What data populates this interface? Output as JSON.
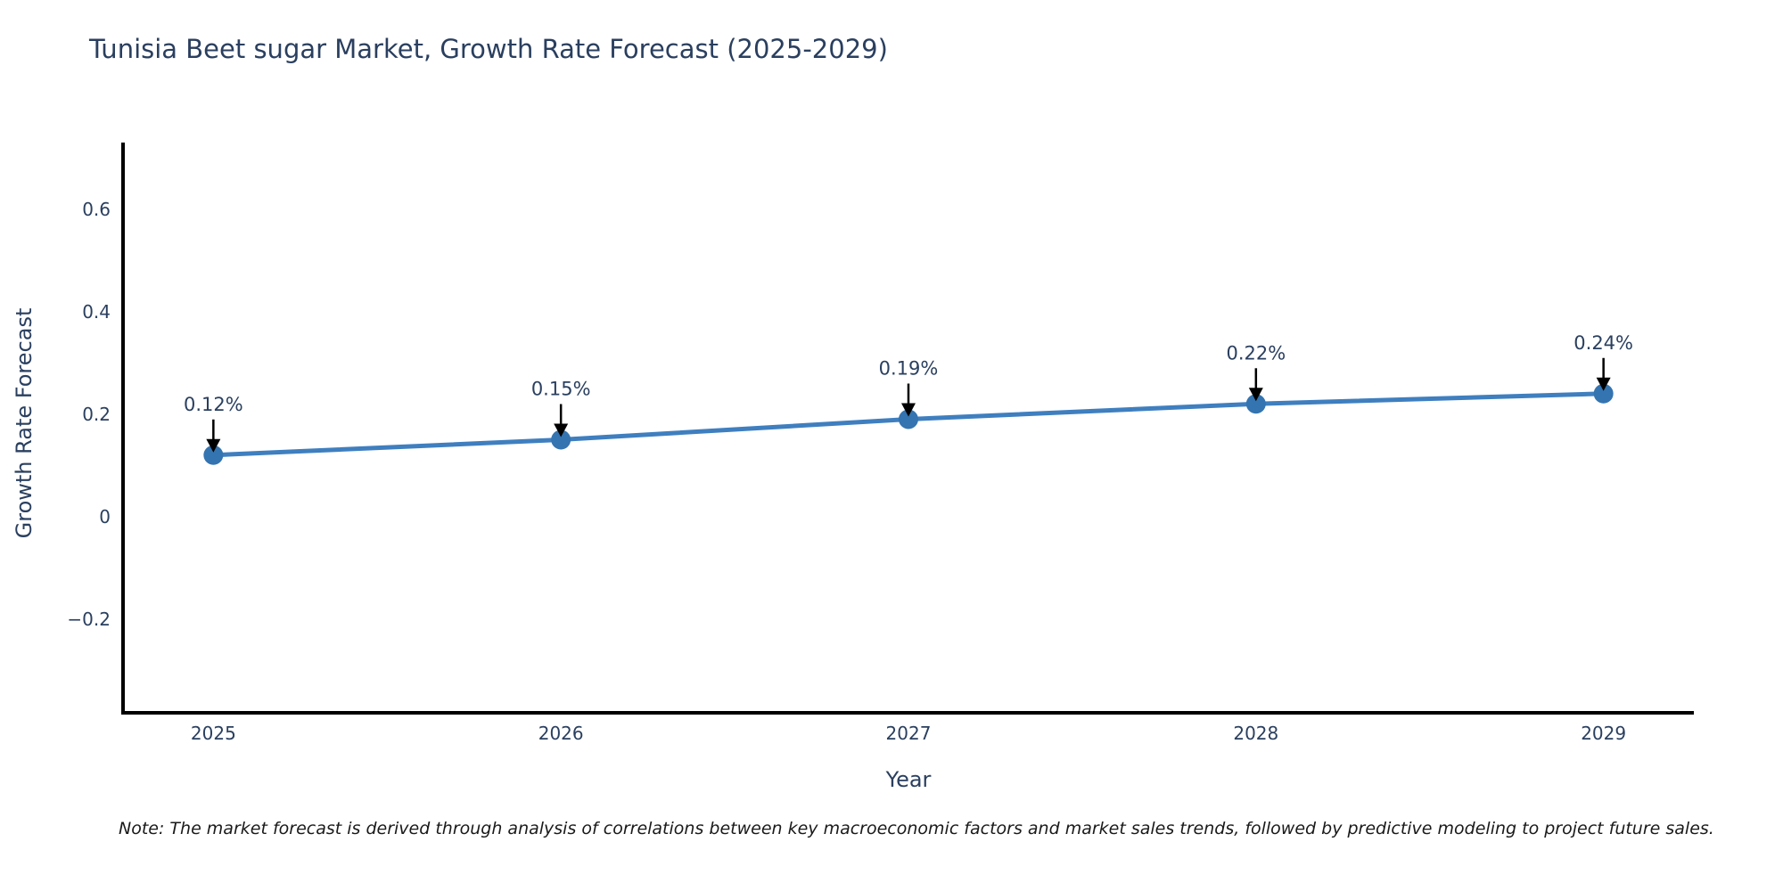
{
  "chart_data": {
    "type": "line",
    "title": "Tunisia Beet sugar Market, Growth Rate Forecast (2025-2029)",
    "xlabel": "Year",
    "ylabel": "Growth Rate Forecast",
    "x": [
      2025,
      2026,
      2027,
      2028,
      2029
    ],
    "series": [
      {
        "name": "Growth Rate Forecast",
        "values": [
          0.12,
          0.15,
          0.19,
          0.22,
          0.24
        ]
      }
    ],
    "point_labels": [
      "0.12%",
      "0.15%",
      "0.19%",
      "0.22%",
      "0.24%"
    ],
    "xtick_labels": [
      "2025",
      "2026",
      "2027",
      "2028",
      "2029"
    ],
    "yticks": [
      -0.2,
      0,
      0.2,
      0.4,
      0.6
    ],
    "ytick_labels": [
      "−0.2",
      "0",
      "0.2",
      "0.4",
      "0.6"
    ],
    "xlim": [
      2024.74,
      2029.26
    ],
    "ylim": [
      -0.383,
      0.73
    ],
    "grid": false,
    "legend": "none",
    "line_color": "#3f7fbf",
    "marker_color": "#3474b0",
    "axis_color": "#000000",
    "tick_text_color": "#2a3f5f",
    "annotation_text_color": "#2a3f5f",
    "annotation_arrow_color": "#000000"
  },
  "note": "Note: The market forecast is derived through analysis of correlations between key macroeconomic factors and market sales trends, followed by predictive modeling to project future sales."
}
